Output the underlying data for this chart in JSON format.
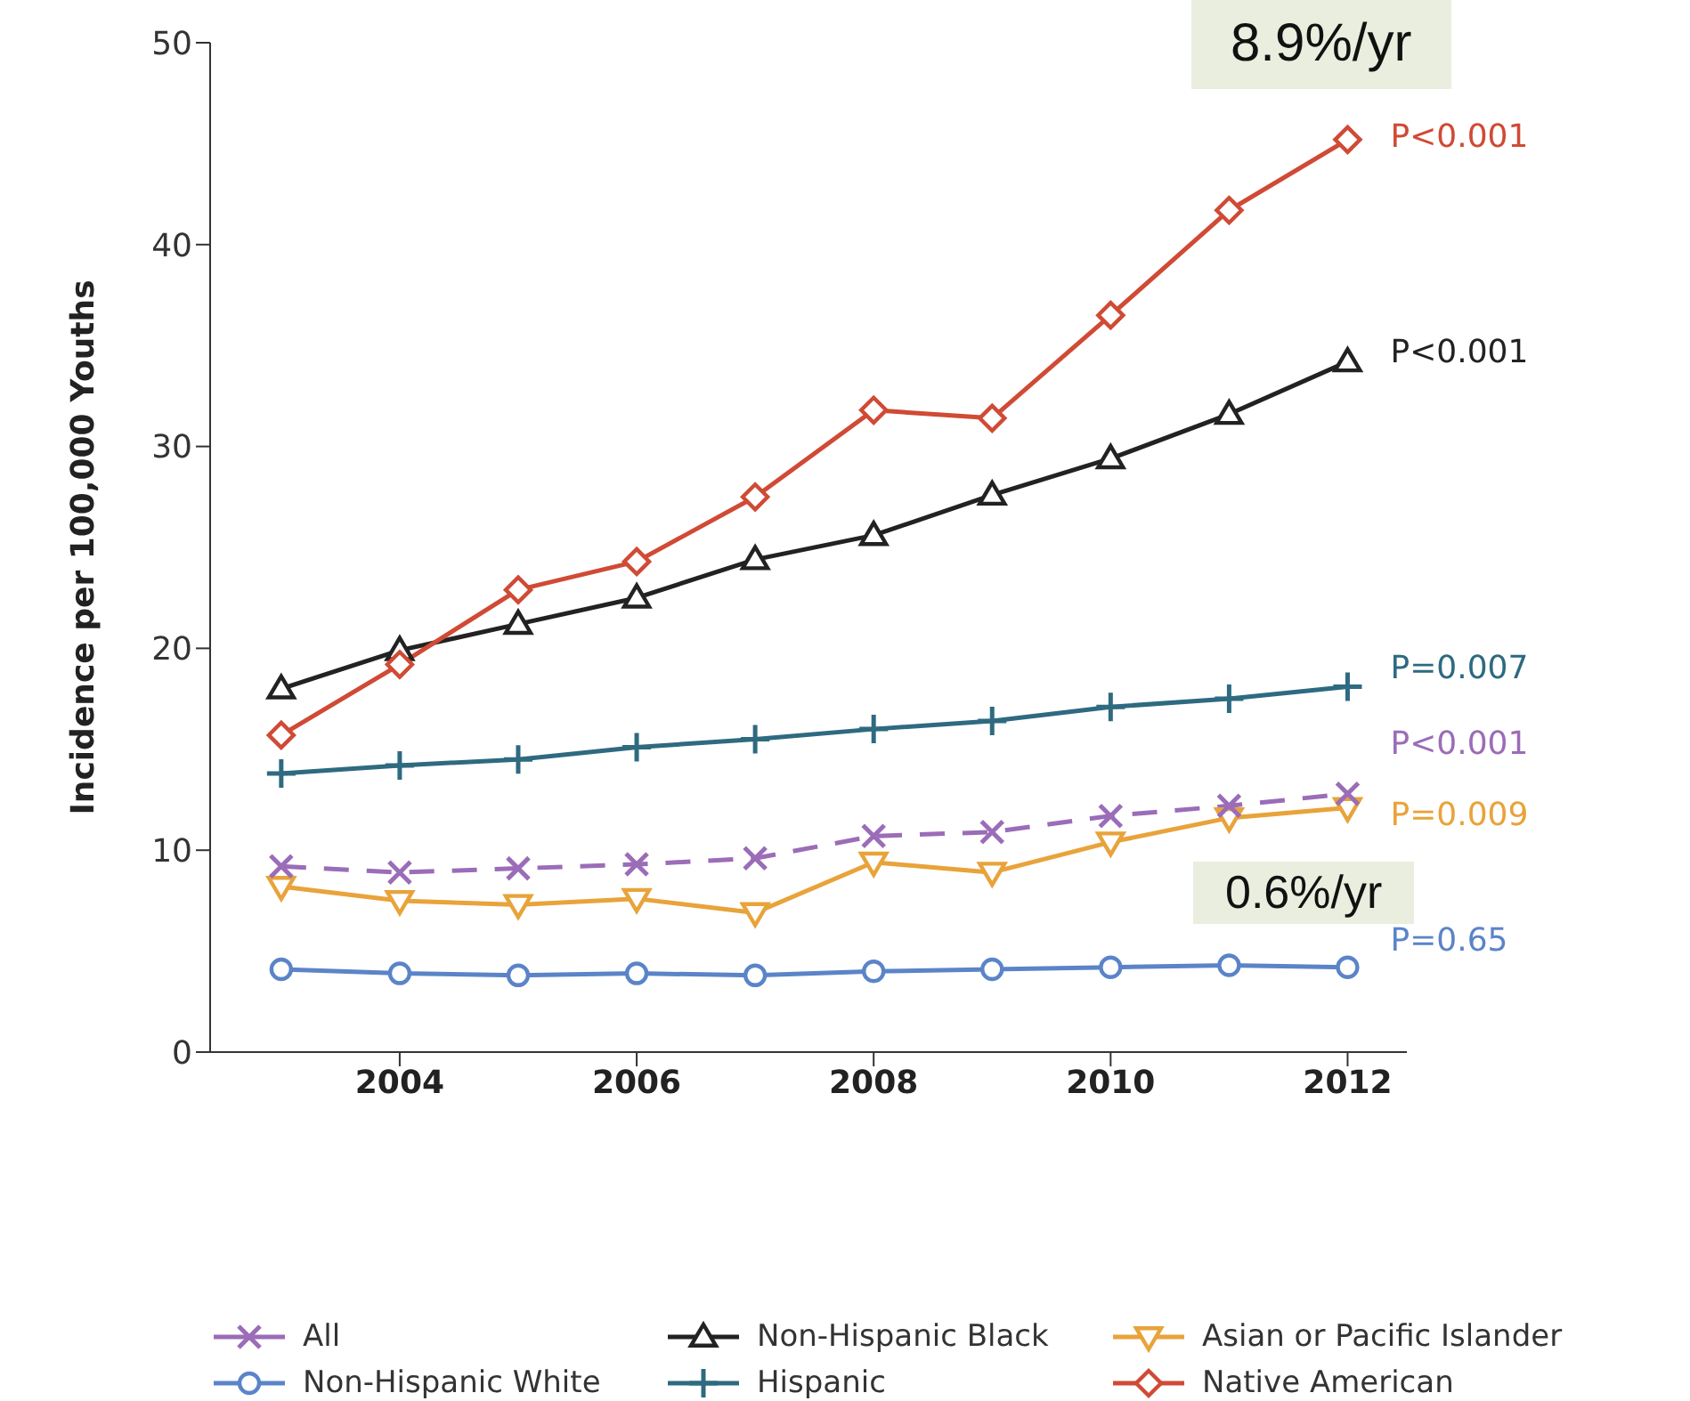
{
  "chart_data": {
    "type": "line",
    "ylabel": "Incidence per 100,000 Youths",
    "x": [
      2003,
      2004,
      2005,
      2006,
      2007,
      2008,
      2009,
      2010,
      2011,
      2012
    ],
    "xlim": [
      2002.4,
      2012.5
    ],
    "xticks": [
      2004,
      2006,
      2008,
      2010,
      2012
    ],
    "ylim": [
      0,
      50
    ],
    "yticks": [
      0,
      10,
      20,
      30,
      40,
      50
    ],
    "grid": false,
    "legend": "bottom",
    "series": [
      {
        "name": "All",
        "color": "#9b6cb8",
        "marker": "cross",
        "line_style": "dashed",
        "values": [
          9.2,
          8.9,
          9.1,
          9.3,
          9.6,
          10.7,
          10.9,
          11.7,
          12.2,
          12.8
        ]
      },
      {
        "name": "Non-Hispanic White",
        "color": "#5b84c8",
        "marker": "circle",
        "line_style": "solid",
        "values": [
          4.1,
          3.9,
          3.8,
          3.9,
          3.8,
          4.0,
          4.1,
          4.2,
          4.3,
          4.2
        ]
      },
      {
        "name": "Non-Hispanic Black",
        "color": "#222222",
        "marker": "triangle",
        "line_style": "solid",
        "values": [
          18.0,
          19.9,
          21.2,
          22.5,
          24.4,
          25.6,
          27.6,
          29.4,
          31.6,
          34.2
        ]
      },
      {
        "name": "Hispanic",
        "color": "#2e6a80",
        "marker": "plus",
        "line_style": "solid",
        "values": [
          13.8,
          14.2,
          14.5,
          15.1,
          15.5,
          16.0,
          16.4,
          17.1,
          17.5,
          18.1
        ]
      },
      {
        "name": "Asian or Pacific Islander",
        "color": "#e8a33a",
        "marker": "triangle-down",
        "line_style": "solid",
        "values": [
          8.2,
          7.5,
          7.3,
          7.6,
          6.9,
          9.4,
          8.9,
          10.4,
          11.6,
          12.1
        ]
      },
      {
        "name": "Native American",
        "color": "#d04a35",
        "marker": "diamond",
        "line_style": "solid",
        "values": [
          15.7,
          19.2,
          22.9,
          24.3,
          27.5,
          31.8,
          31.4,
          36.5,
          41.7,
          45.2
        ]
      }
    ],
    "annotations": [
      "P<0.001",
      "P=0.65",
      "P<0.001",
      "P=0.007",
      "P=0.009",
      "P<0.001",
      "8.9%/yr",
      "0.6%/yr"
    ]
  }
}
